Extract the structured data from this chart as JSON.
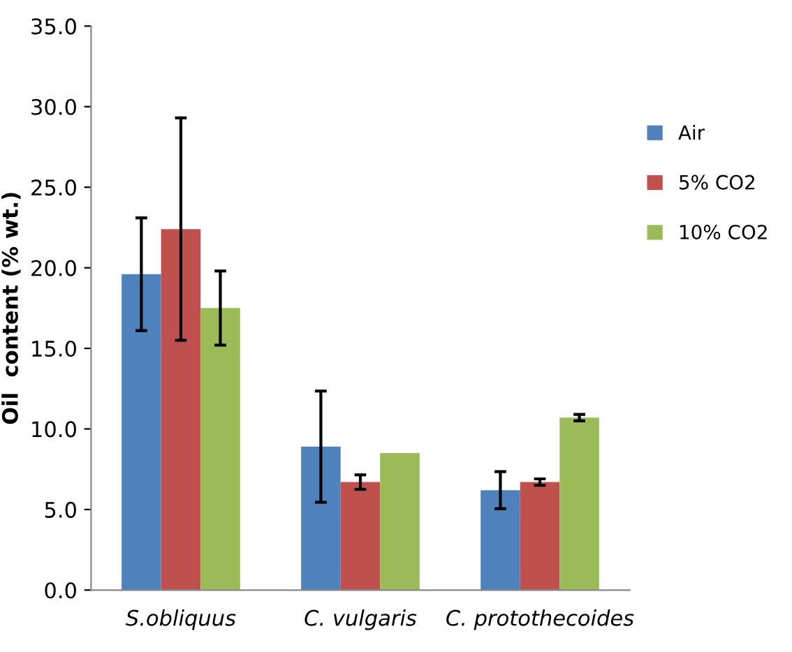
{
  "chart_data": {
    "type": "bar",
    "ylabel": "Oil  content (% wt.)",
    "categories": [
      "S.obliquus",
      "C. vulgaris",
      "C. protothecoides"
    ],
    "series": [
      {
        "name": "Air",
        "color": "#4f81bd",
        "values": [
          19.6,
          8.9,
          6.2
        ],
        "errors": [
          3.5,
          3.45,
          1.15
        ]
      },
      {
        "name": "5% CO2",
        "color": "#c0504d",
        "values": [
          22.4,
          6.7,
          6.7
        ],
        "errors": [
          6.9,
          0.45,
          0.2
        ]
      },
      {
        "name": "10% CO2",
        "color": "#9bbb59",
        "values": [
          17.5,
          8.5,
          10.7
        ],
        "errors": [
          2.3,
          null,
          0.2
        ]
      }
    ],
    "ylim": [
      0,
      35
    ],
    "yticks": [
      {
        "value": 0,
        "label": "0.0"
      },
      {
        "value": 5,
        "label": "5.0"
      },
      {
        "value": 10,
        "label": "10.0"
      },
      {
        "value": 15,
        "label": "15.0"
      },
      {
        "value": 20,
        "label": "20.0"
      },
      {
        "value": 25,
        "label": "25.0"
      },
      {
        "value": 30,
        "label": "30.0"
      },
      {
        "value": 35,
        "label": "35.0"
      }
    ],
    "grid": false,
    "legend": "right"
  }
}
